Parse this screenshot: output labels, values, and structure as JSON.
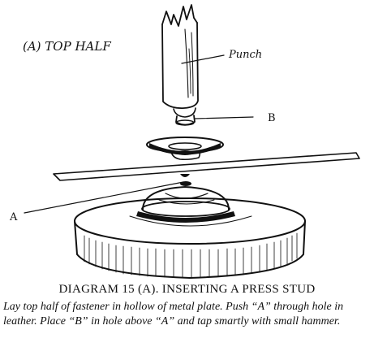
{
  "diagram": {
    "heading": "(A)  TOP HALF",
    "labels": {
      "punch": "Punch",
      "b": "B",
      "a": "A"
    }
  },
  "caption": {
    "title": "DIAGRAM 15 (A).  INSERTING A PRESS STUD",
    "body": "Lay top half of fastener in hollow of metal plate.  Push “A” through hole in leather.  Place “B” in hole above “A” and tap smartly with small hammer."
  }
}
